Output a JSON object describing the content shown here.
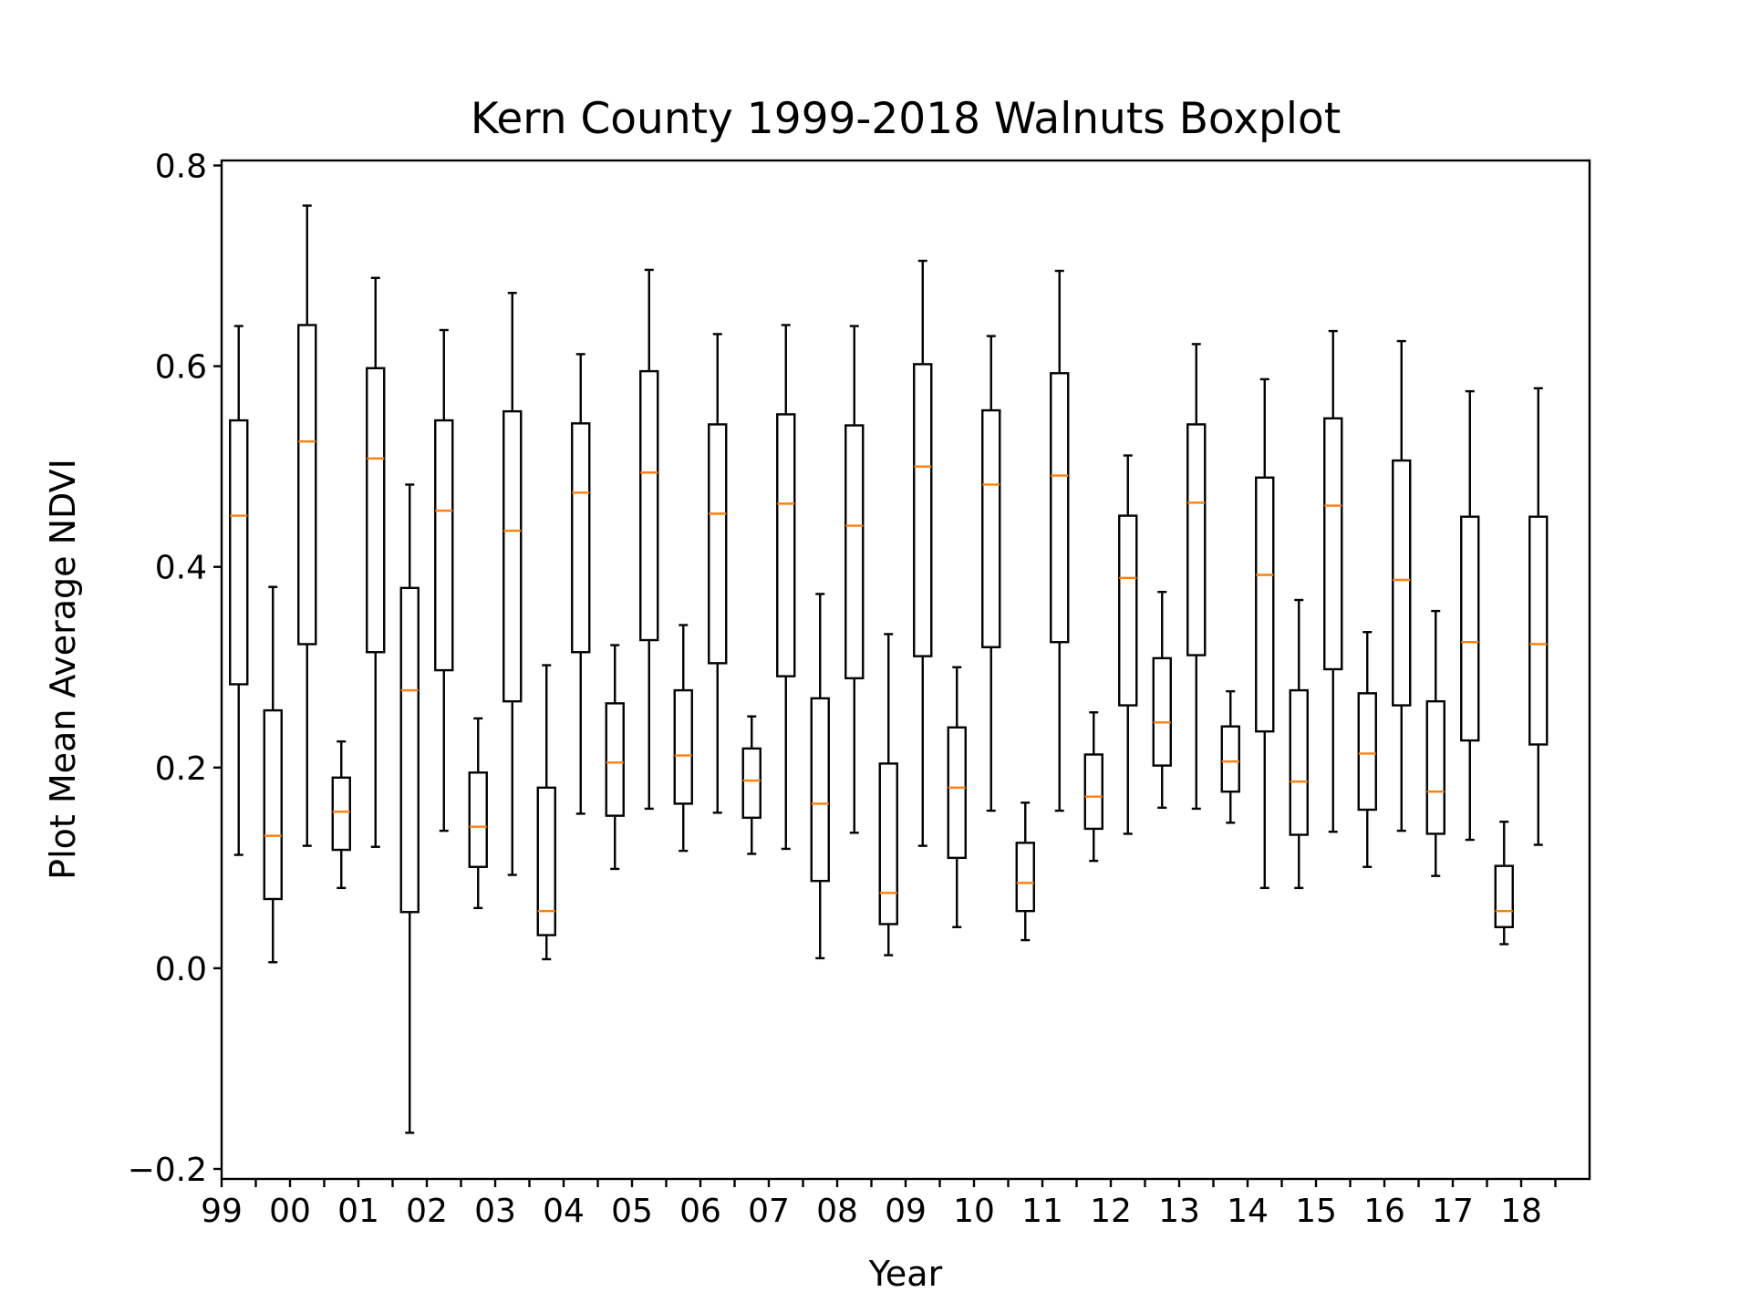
{
  "chart_data": {
    "type": "boxplot",
    "title": "Kern County 1999-2018 Walnuts Boxplot",
    "xlabel": "Year",
    "ylabel": "Plot Mean Average NDVI",
    "ylim": [
      -0.21,
      0.805
    ],
    "xlim": [
      0.5,
      40.5
    ],
    "yticks": [
      -0.2,
      0.0,
      0.2,
      0.4,
      0.6,
      0.8
    ],
    "ytick_labels": [
      "−0.2",
      "0.0",
      "0.2",
      "0.4",
      "0.6",
      "0.8"
    ],
    "xtick_labels": [
      "99",
      "00",
      "01",
      "02",
      "03",
      "04",
      "05",
      "06",
      "07",
      "08",
      "09",
      "10",
      "11",
      "12",
      "13",
      "14",
      "15",
      "16",
      "17",
      "18"
    ],
    "grid": false,
    "colors": {
      "box": "#000000",
      "median": "#ff7f0e"
    },
    "boxes": [
      {
        "pos": 1,
        "whislo": 0.113,
        "q1": 0.283,
        "med": 0.451,
        "q3": 0.546,
        "whishi": 0.64
      },
      {
        "pos": 2,
        "whislo": 0.006,
        "q1": 0.069,
        "med": 0.132,
        "q3": 0.257,
        "whishi": 0.38
      },
      {
        "pos": 3,
        "whislo": 0.122,
        "q1": 0.323,
        "med": 0.525,
        "q3": 0.641,
        "whishi": 0.76
      },
      {
        "pos": 4,
        "whislo": 0.08,
        "q1": 0.118,
        "med": 0.156,
        "q3": 0.19,
        "whishi": 0.226
      },
      {
        "pos": 5,
        "whislo": 0.121,
        "q1": 0.315,
        "med": 0.508,
        "q3": 0.598,
        "whishi": 0.688
      },
      {
        "pos": 6,
        "whislo": -0.164,
        "q1": 0.056,
        "med": 0.277,
        "q3": 0.379,
        "whishi": 0.482
      },
      {
        "pos": 7,
        "whislo": 0.137,
        "q1": 0.297,
        "med": 0.456,
        "q3": 0.546,
        "whishi": 0.636
      },
      {
        "pos": 8,
        "whislo": 0.06,
        "q1": 0.101,
        "med": 0.141,
        "q3": 0.195,
        "whishi": 0.249
      },
      {
        "pos": 9,
        "whislo": 0.093,
        "q1": 0.266,
        "med": 0.436,
        "q3": 0.555,
        "whishi": 0.673
      },
      {
        "pos": 10,
        "whislo": 0.009,
        "q1": 0.033,
        "med": 0.057,
        "q3": 0.18,
        "whishi": 0.302
      },
      {
        "pos": 11,
        "whislo": 0.154,
        "q1": 0.315,
        "med": 0.474,
        "q3": 0.543,
        "whishi": 0.612
      },
      {
        "pos": 12,
        "whislo": 0.099,
        "q1": 0.152,
        "med": 0.205,
        "q3": 0.264,
        "whishi": 0.322
      },
      {
        "pos": 13,
        "whislo": 0.159,
        "q1": 0.327,
        "med": 0.494,
        "q3": 0.595,
        "whishi": 0.696
      },
      {
        "pos": 14,
        "whislo": 0.117,
        "q1": 0.164,
        "med": 0.212,
        "q3": 0.277,
        "whishi": 0.342
      },
      {
        "pos": 15,
        "whislo": 0.155,
        "q1": 0.304,
        "med": 0.453,
        "q3": 0.542,
        "whishi": 0.632
      },
      {
        "pos": 16,
        "whislo": 0.114,
        "q1": 0.15,
        "med": 0.187,
        "q3": 0.219,
        "whishi": 0.251
      },
      {
        "pos": 17,
        "whislo": 0.119,
        "q1": 0.291,
        "med": 0.463,
        "q3": 0.552,
        "whishi": 0.641
      },
      {
        "pos": 18,
        "whislo": 0.01,
        "q1": 0.087,
        "med": 0.164,
        "q3": 0.269,
        "whishi": 0.373
      },
      {
        "pos": 19,
        "whislo": 0.135,
        "q1": 0.289,
        "med": 0.441,
        "q3": 0.541,
        "whishi": 0.64
      },
      {
        "pos": 20,
        "whislo": 0.013,
        "q1": 0.044,
        "med": 0.075,
        "q3": 0.204,
        "whishi": 0.333
      },
      {
        "pos": 21,
        "whislo": 0.122,
        "q1": 0.311,
        "med": 0.5,
        "q3": 0.602,
        "whishi": 0.705
      },
      {
        "pos": 22,
        "whislo": 0.041,
        "q1": 0.11,
        "med": 0.18,
        "q3": 0.24,
        "whishi": 0.3
      },
      {
        "pos": 23,
        "whislo": 0.157,
        "q1": 0.32,
        "med": 0.482,
        "q3": 0.556,
        "whishi": 0.63
      },
      {
        "pos": 24,
        "whislo": 0.028,
        "q1": 0.057,
        "med": 0.085,
        "q3": 0.125,
        "whishi": 0.165
      },
      {
        "pos": 25,
        "whislo": 0.157,
        "q1": 0.325,
        "med": 0.491,
        "q3": 0.593,
        "whishi": 0.695
      },
      {
        "pos": 26,
        "whislo": 0.107,
        "q1": 0.139,
        "med": 0.171,
        "q3": 0.213,
        "whishi": 0.255
      },
      {
        "pos": 27,
        "whislo": 0.134,
        "q1": 0.262,
        "med": 0.389,
        "q3": 0.451,
        "whishi": 0.511
      },
      {
        "pos": 28,
        "whislo": 0.16,
        "q1": 0.202,
        "med": 0.245,
        "q3": 0.309,
        "whishi": 0.375
      },
      {
        "pos": 29,
        "whislo": 0.159,
        "q1": 0.312,
        "med": 0.464,
        "q3": 0.542,
        "whishi": 0.622
      },
      {
        "pos": 30,
        "whislo": 0.145,
        "q1": 0.176,
        "med": 0.206,
        "q3": 0.241,
        "whishi": 0.276
      },
      {
        "pos": 31,
        "whislo": 0.08,
        "q1": 0.236,
        "med": 0.392,
        "q3": 0.489,
        "whishi": 0.587
      },
      {
        "pos": 32,
        "whislo": 0.08,
        "q1": 0.133,
        "med": 0.186,
        "q3": 0.277,
        "whishi": 0.367
      },
      {
        "pos": 33,
        "whislo": 0.136,
        "q1": 0.298,
        "med": 0.461,
        "q3": 0.548,
        "whishi": 0.635
      },
      {
        "pos": 34,
        "whislo": 0.101,
        "q1": 0.158,
        "med": 0.214,
        "q3": 0.274,
        "whishi": 0.335
      },
      {
        "pos": 35,
        "whislo": 0.137,
        "q1": 0.262,
        "med": 0.387,
        "q3": 0.506,
        "whishi": 0.625
      },
      {
        "pos": 36,
        "whislo": 0.092,
        "q1": 0.134,
        "med": 0.176,
        "q3": 0.266,
        "whishi": 0.356
      },
      {
        "pos": 37,
        "whislo": 0.128,
        "q1": 0.227,
        "med": 0.325,
        "q3": 0.45,
        "whishi": 0.575
      },
      {
        "pos": 38,
        "whislo": 0.024,
        "q1": 0.041,
        "med": 0.057,
        "q3": 0.102,
        "whishi": 0.146
      },
      {
        "pos": 39,
        "whislo": 0.123,
        "q1": 0.223,
        "med": 0.323,
        "q3": 0.45,
        "whishi": 0.578
      }
    ]
  }
}
